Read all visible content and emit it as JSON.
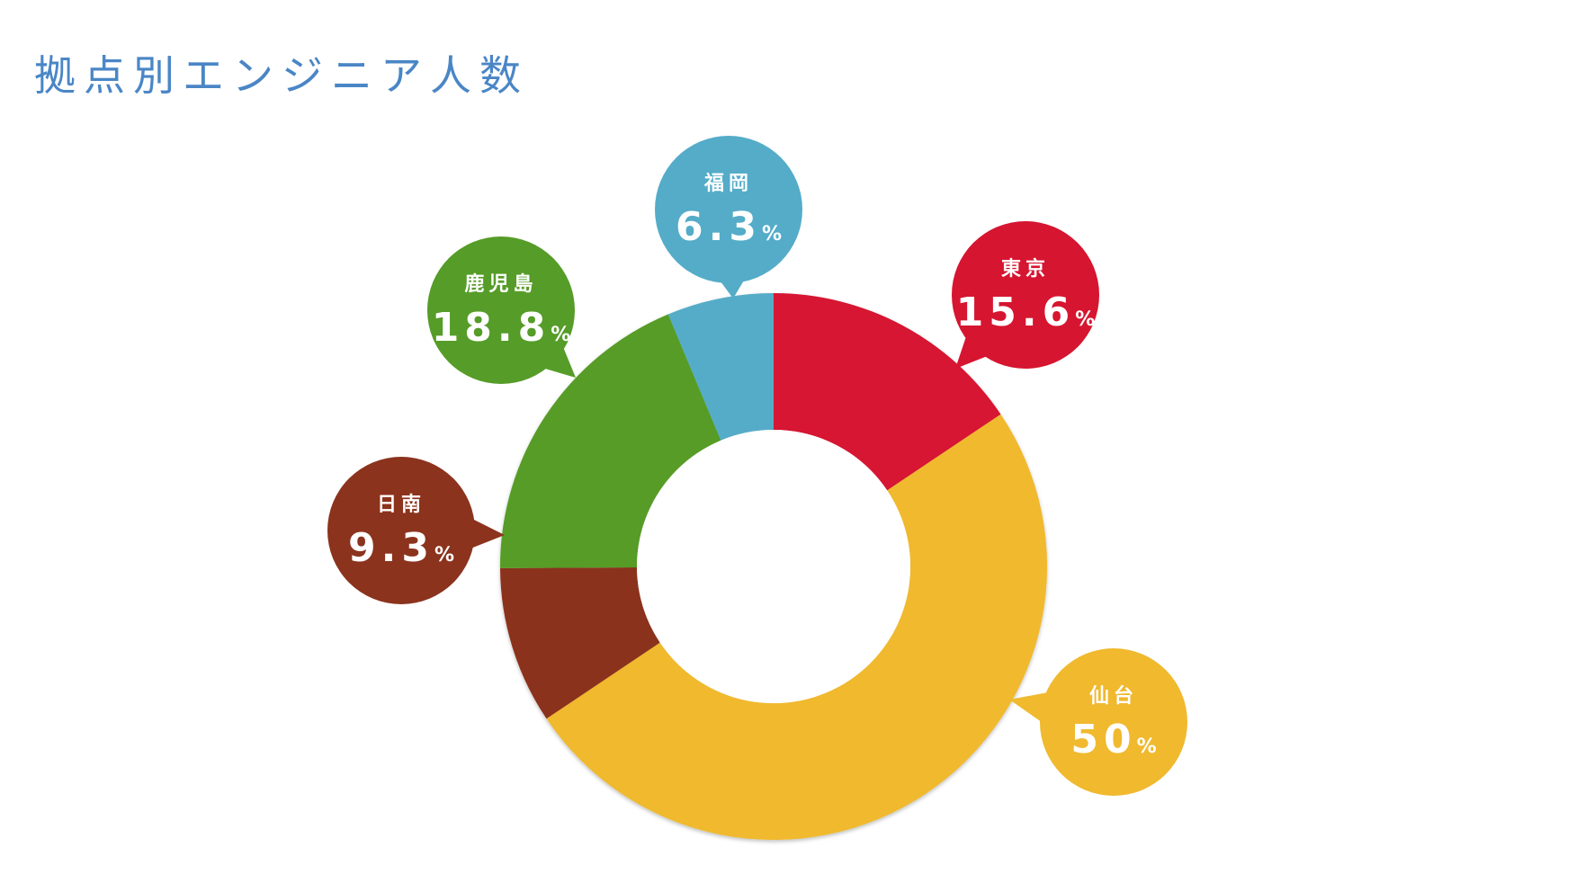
{
  "title": "拠点別エンジニア人数",
  "chart_data": {
    "type": "pie",
    "title": "拠点別エンジニア人数",
    "unit": "%",
    "slices": [
      {
        "label": "東京",
        "value": 15.6,
        "display": "15.6",
        "color": "#d61530"
      },
      {
        "label": "仙台",
        "value": 50,
        "display": "50",
        "color": "#f0b92e"
      },
      {
        "label": "日南",
        "value": 9.3,
        "display": "9.3",
        "color": "#8b331d"
      },
      {
        "label": "鹿児島",
        "value": 18.8,
        "display": "18.8",
        "color": "#569c28"
      },
      {
        "label": "福岡",
        "value": 6.3,
        "display": "6.3",
        "color": "#54acc8"
      }
    ]
  }
}
